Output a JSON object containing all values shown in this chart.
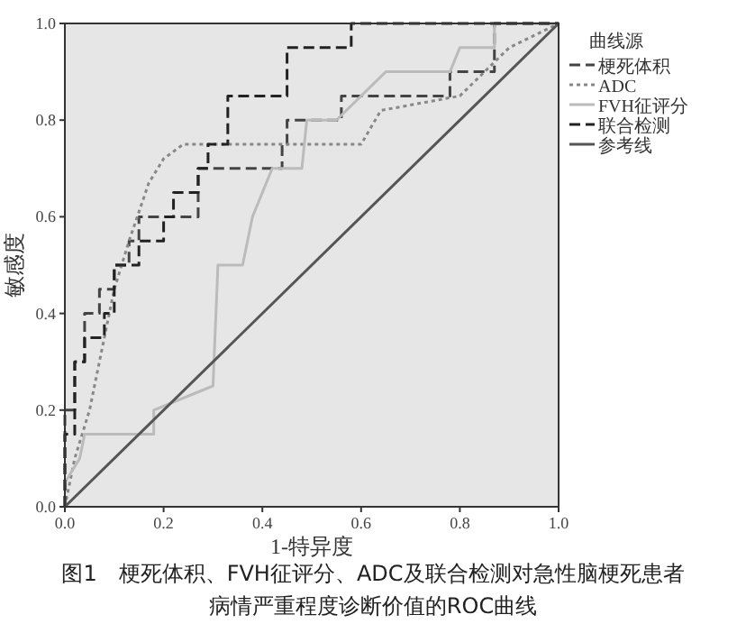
{
  "chart_data": {
    "type": "line",
    "title": "图1　梗死体积、FVH征评分、ADC及联合检测对急性脑梗死患者病情严重程度诊断价值的ROC曲线",
    "xlabel": "1-特异度",
    "ylabel": "敏感度",
    "legend_title": "曲线源",
    "legend": "right",
    "xlim": [
      0,
      1
    ],
    "ylim": [
      0,
      1
    ],
    "xticks": [
      {
        "value": 0,
        "label": "0.0"
      },
      0.2,
      0.4,
      0.6,
      0.8,
      {
        "value": 1,
        "label": "1.0"
      }
    ],
    "yticks": [
      {
        "value": 0,
        "label": "0.0"
      },
      0.2,
      0.4,
      0.6,
      0.8,
      {
        "value": 1,
        "label": "1.0"
      }
    ],
    "series": [
      {
        "name": "梗死体积",
        "color": "#444444",
        "line_style": "dashed",
        "x": [
          0,
          0,
          0.02,
          0.02,
          0.04,
          0.04,
          0.07,
          0.07,
          0.1,
          0.1,
          0.13,
          0.13,
          0.15,
          0.15,
          0.27,
          0.27,
          0.44,
          0.44,
          0.45,
          0.45,
          0.56,
          0.56,
          0.78,
          0.78,
          0.87,
          0.87,
          1
        ],
        "values": [
          0,
          0.2,
          0.2,
          0.3,
          0.3,
          0.4,
          0.4,
          0.45,
          0.45,
          0.5,
          0.5,
          0.55,
          0.55,
          0.6,
          0.6,
          0.7,
          0.7,
          0.75,
          0.75,
          0.8,
          0.8,
          0.85,
          0.85,
          0.9,
          0.9,
          1,
          1
        ]
      },
      {
        "name": "ADC",
        "color": "#888888",
        "line_style": "dotted",
        "x": [
          0,
          0.02,
          0.05,
          0.07,
          0.1,
          0.13,
          0.17,
          0.2,
          0.24,
          0.6,
          0.64,
          0.8,
          0.85,
          0.9,
          1
        ],
        "values": [
          0,
          0.1,
          0.2,
          0.3,
          0.45,
          0.55,
          0.67,
          0.72,
          0.75,
          0.75,
          0.82,
          0.85,
          0.9,
          0.95,
          1
        ]
      },
      {
        "name": "FVH征评分",
        "color": "#bbbbbb",
        "line_style": "solid",
        "x": [
          0,
          0.03,
          0.04,
          0.18,
          0.18,
          0.3,
          0.31,
          0.36,
          0.38,
          0.42,
          0.48,
          0.49,
          0.55,
          0.65,
          0.78,
          0.8,
          0.87,
          0.87,
          1
        ],
        "values": [
          0.05,
          0.1,
          0.15,
          0.15,
          0.2,
          0.25,
          0.5,
          0.5,
          0.6,
          0.7,
          0.7,
          0.8,
          0.8,
          0.9,
          0.9,
          0.95,
          0.95,
          1,
          1
        ]
      },
      {
        "name": "联合检测",
        "color": "#222222",
        "line_style": "dashed",
        "x": [
          0,
          0,
          0.02,
          0.02,
          0.04,
          0.04,
          0.08,
          0.08,
          0.1,
          0.1,
          0.15,
          0.15,
          0.2,
          0.2,
          0.22,
          0.22,
          0.27,
          0.27,
          0.29,
          0.29,
          0.33,
          0.33,
          0.45,
          0.45,
          0.58,
          0.58,
          1
        ],
        "values": [
          0,
          0.15,
          0.15,
          0.3,
          0.3,
          0.35,
          0.35,
          0.4,
          0.4,
          0.5,
          0.5,
          0.55,
          0.55,
          0.6,
          0.6,
          0.65,
          0.65,
          0.7,
          0.7,
          0.75,
          0.75,
          0.85,
          0.85,
          0.95,
          0.95,
          1,
          1
        ]
      },
      {
        "name": "参考线",
        "color": "#555555",
        "line_style": "solid",
        "x": [
          0,
          1
        ],
        "values": [
          0,
          1
        ]
      }
    ]
  }
}
